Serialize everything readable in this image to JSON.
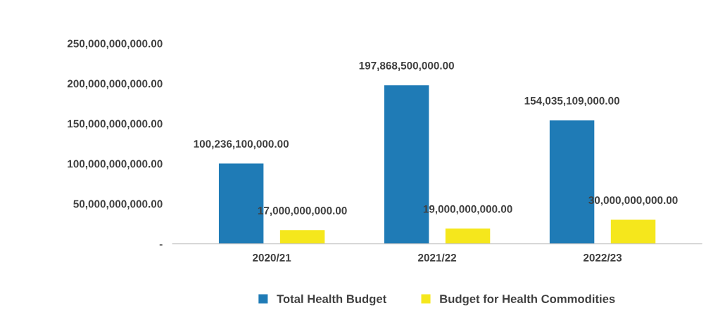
{
  "chart_data": {
    "type": "bar",
    "categories": [
      "2020/21",
      "2021/22",
      "2022/23"
    ],
    "series": [
      {
        "name": "Total Health Budget",
        "color": "#1f7bb6",
        "values": [
          100236100000,
          197868500000,
          154035109000
        ],
        "value_labels": [
          "100,236,100,000.00",
          "197,868,500,000.00",
          "154,035,109,000.00"
        ]
      },
      {
        "name": "Budget for Health Commodities",
        "color": "#f5e71c",
        "values": [
          17000000000,
          19000000000,
          30000000000
        ],
        "value_labels": [
          "17,000,000,000.00",
          "19,000,000,000.00",
          "30,000,000,000.00"
        ]
      }
    ],
    "ylim": [
      0,
      250000000000
    ],
    "yticks": [
      {
        "value": 0,
        "label": "-"
      },
      {
        "value": 50000000000,
        "label": "50,000,000,000.00"
      },
      {
        "value": 100000000000,
        "label": "100,000,000,000.00"
      },
      {
        "value": 150000000000,
        "label": "150,000,000,000.00"
      },
      {
        "value": 200000000000,
        "label": "200,000,000,000.00"
      },
      {
        "value": 250000000000,
        "label": "250,000,000,000.00"
      }
    ],
    "grid": false,
    "legend": "bottom"
  }
}
